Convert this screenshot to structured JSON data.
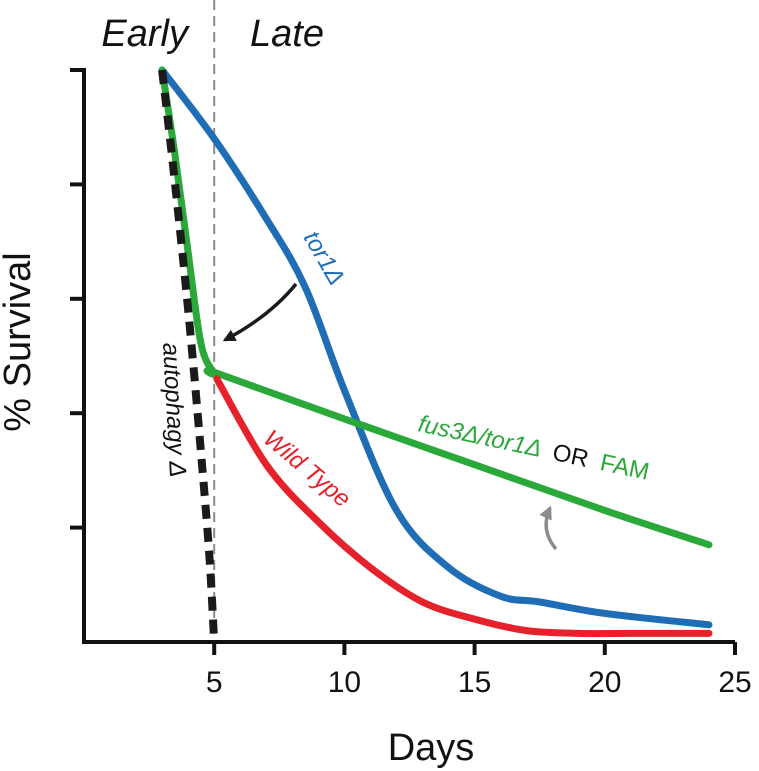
{
  "chart_data": {
    "type": "line",
    "title": "",
    "xlabel": "Days",
    "ylabel": "% Survival",
    "xlim": [
      0,
      25
    ],
    "ylim": [
      0,
      100
    ],
    "x_ticks": [
      5,
      10,
      15,
      20,
      25
    ],
    "y_ticks": [
      0,
      20,
      40,
      60,
      80,
      100
    ],
    "y_tick_labels_shown": false,
    "grid": false,
    "legend": "none (series labeled directly on the plot)",
    "phases": {
      "early": "Early",
      "late": "Late",
      "boundary_x": 5
    },
    "series": [
      {
        "name": "tor1Δ",
        "color": "#1f6eb5",
        "style": "solid",
        "x": [
          3,
          5,
          7,
          8.5,
          10,
          12,
          14,
          16,
          17.5,
          20,
          24
        ],
        "y": [
          100,
          88,
          74,
          62,
          44,
          23,
          13,
          8,
          7,
          5,
          3
        ]
      },
      {
        "name": "fus3Δ/tor1Δ OR FAM",
        "label_parts": {
          "a": "fus3Δ/tor1Δ",
          "b": "OR",
          "c": "FAM"
        },
        "color": "#2aa83a",
        "style": "solid",
        "x": [
          3,
          3.5,
          4,
          4.5,
          5,
          5.1,
          10,
          15,
          20,
          24
        ],
        "y": [
          100,
          85,
          68,
          52,
          47,
          47,
          39,
          31,
          23,
          17
        ]
      },
      {
        "name": "Wild Type",
        "color": "#e5222b",
        "style": "solid",
        "x": [
          5.1,
          7,
          9,
          11,
          13,
          15,
          17,
          19,
          21,
          24
        ],
        "y": [
          46,
          31,
          21,
          13,
          7,
          4,
          2,
          1.5,
          1.5,
          1.5
        ]
      },
      {
        "name": "autophagy Δ",
        "color": "#1a1a1a",
        "style": "dashed",
        "x": [
          3,
          3.5,
          4,
          4.4,
          4.8,
          5
        ],
        "y": [
          100,
          80,
          58,
          38,
          16,
          0
        ]
      }
    ],
    "annotations": [
      {
        "type": "arrow",
        "color": "#1a1a1a",
        "meaning": "tor1Δ toward fus3Δ/tor1Δ curve"
      },
      {
        "type": "arrow",
        "color": "#8a8a8a",
        "meaning": "curved arrow under fus3Δ/tor1Δ label"
      }
    ]
  }
}
